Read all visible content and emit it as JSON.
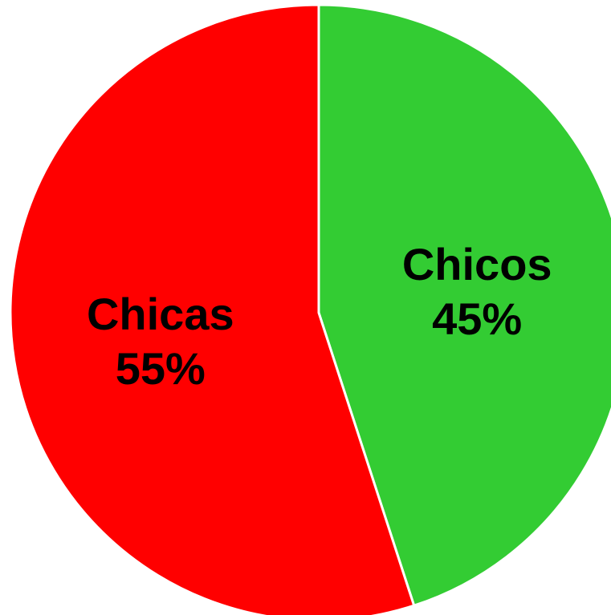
{
  "chart_data": {
    "type": "pie",
    "slices": [
      {
        "label": "Chicos",
        "value": 45,
        "percent_label": "45%",
        "color": "#33cc33"
      },
      {
        "label": "Chicas",
        "value": 55,
        "percent_label": "55%",
        "color": "#ff0000"
      }
    ],
    "start_angle": "12 o'clock",
    "direction": "clockwise",
    "slice_border_color": "#ffffff",
    "legend": "none"
  }
}
